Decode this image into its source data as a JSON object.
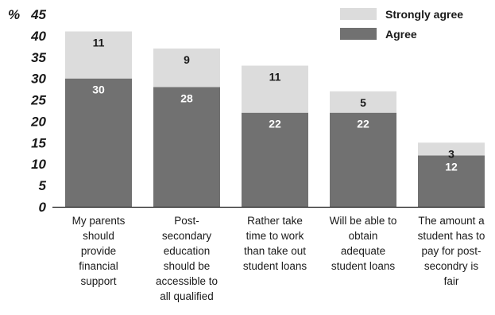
{
  "chart_data": {
    "type": "bar",
    "stacked": true,
    "y_unit": "%",
    "ylim": [
      0,
      45
    ],
    "yticks": [
      0,
      5,
      10,
      15,
      20,
      25,
      30,
      35,
      40,
      45
    ],
    "categories": [
      [
        "My parents",
        "should",
        "provide",
        "financial",
        "support"
      ],
      [
        "Post-",
        "secondary",
        "education",
        "should be",
        "accessible to",
        "all qualified"
      ],
      [
        "Rather take",
        "time to work",
        "than take out",
        "student loans"
      ],
      [
        "Will be able to",
        "obtain",
        "adequate",
        "student loans"
      ],
      [
        "The amount a",
        "student has to",
        "pay for post-",
        "secondry is",
        "fair"
      ]
    ],
    "series": [
      {
        "name": "Agree",
        "color": "#717171",
        "label_color": "#ffffff",
        "values": [
          30,
          28,
          22,
          22,
          12
        ]
      },
      {
        "name": "Strongly agree",
        "color": "#dcdcdc",
        "label_color": "#1a1a1a",
        "values": [
          11,
          9,
          11,
          5,
          3
        ]
      }
    ],
    "legend": {
      "position": "top-right",
      "order": [
        "Strongly agree",
        "Agree"
      ]
    },
    "grid": false
  }
}
